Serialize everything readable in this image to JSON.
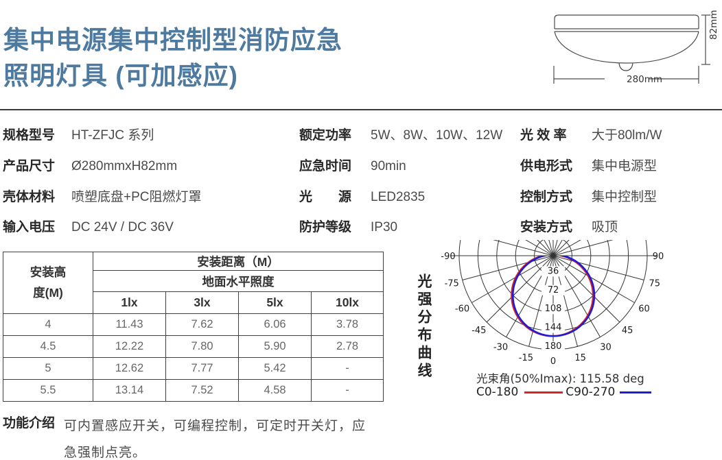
{
  "header": {
    "title_line1": "集中电源集中控制型消防应急",
    "title_line2": "照明灯具 (可加感应)",
    "title_color": "#4f7aa0"
  },
  "drawing": {
    "width_label": "280mm",
    "height_label": "82mm"
  },
  "specs": [
    {
      "label": "规格型号",
      "value": "HT-ZFJC 系列"
    },
    {
      "label": "额定功率",
      "value": "5W、8W、10W、12W"
    },
    {
      "label": "光 效 率",
      "value": "大于80lm/W"
    },
    {
      "label": "产品尺寸",
      "value": "Ø280mmxH82mm"
    },
    {
      "label": "应急时间",
      "value": "90min"
    },
    {
      "label": "供电形式",
      "value": "集中电源型"
    },
    {
      "label": "壳体材料",
      "value": "喷塑底盘+PC阻燃灯罩"
    },
    {
      "label": "光　　源",
      "value": "LED2835"
    },
    {
      "label": "控制方式",
      "value": "集中控制型"
    },
    {
      "label": "输入电压",
      "value": "DC 24V / DC 36V"
    },
    {
      "label": "防护等级",
      "value": "IP30"
    },
    {
      "label": "安装方式",
      "value": "吸顶"
    }
  ],
  "install_table": {
    "height_header": "安装高\n度(M)",
    "distance_header": "安装距离（M）",
    "illuminance_header": "地面水平照度",
    "lux_headers": [
      "1lx",
      "3lx",
      "5lx",
      "10lx"
    ],
    "rows": [
      [
        "4",
        "11.43",
        "7.62",
        "6.06",
        "3.78"
      ],
      [
        "4.5",
        "12.22",
        "7.80",
        "5.90",
        "2.78"
      ],
      [
        "5",
        "12.62",
        "7.77",
        "5.42",
        "-"
      ],
      [
        "5.5",
        "13.14",
        "7.52",
        "4.58",
        "-"
      ]
    ]
  },
  "function_intro": {
    "label": "功能介绍",
    "text": "可内置感应开关，可编程控制，可定时开关灯，应急强制点亮。"
  },
  "chart_data": {
    "type": "polar_intensity_distribution",
    "title": "光强分布曲线",
    "ring_values": [
      36,
      72,
      108,
      144,
      180
    ],
    "ring_max": 180,
    "angle_step_deg": 15,
    "angle_labels_deg": [
      -90,
      -75,
      -60,
      -45,
      -30,
      -15,
      0,
      15,
      30,
      45,
      60,
      75,
      90
    ],
    "series": [
      {
        "name": "C0-180",
        "color": "#dd2222",
        "angles_deg": [
          0,
          15,
          30,
          45,
          60,
          75,
          90
        ],
        "intensity_cd": [
          154,
          149,
          134,
          110,
          80,
          46,
          18
        ]
      },
      {
        "name": "C90-270",
        "color": "#1c1cdd",
        "angles_deg": [
          0,
          15,
          30,
          45,
          60,
          75,
          90
        ],
        "intensity_cd": [
          154,
          149,
          134,
          110,
          80,
          46,
          18
        ]
      }
    ],
    "curve_model": {
      "shape": "circle",
      "center_depth_cd": 76,
      "radius_cd": 78
    },
    "beam_angle_caption": "光束角(50%Imax): 115.58 deg",
    "legend": [
      {
        "label": "C0-180",
        "color": "#dd2222"
      },
      {
        "label": "C90-270",
        "color": "#1c1cdd"
      }
    ]
  }
}
